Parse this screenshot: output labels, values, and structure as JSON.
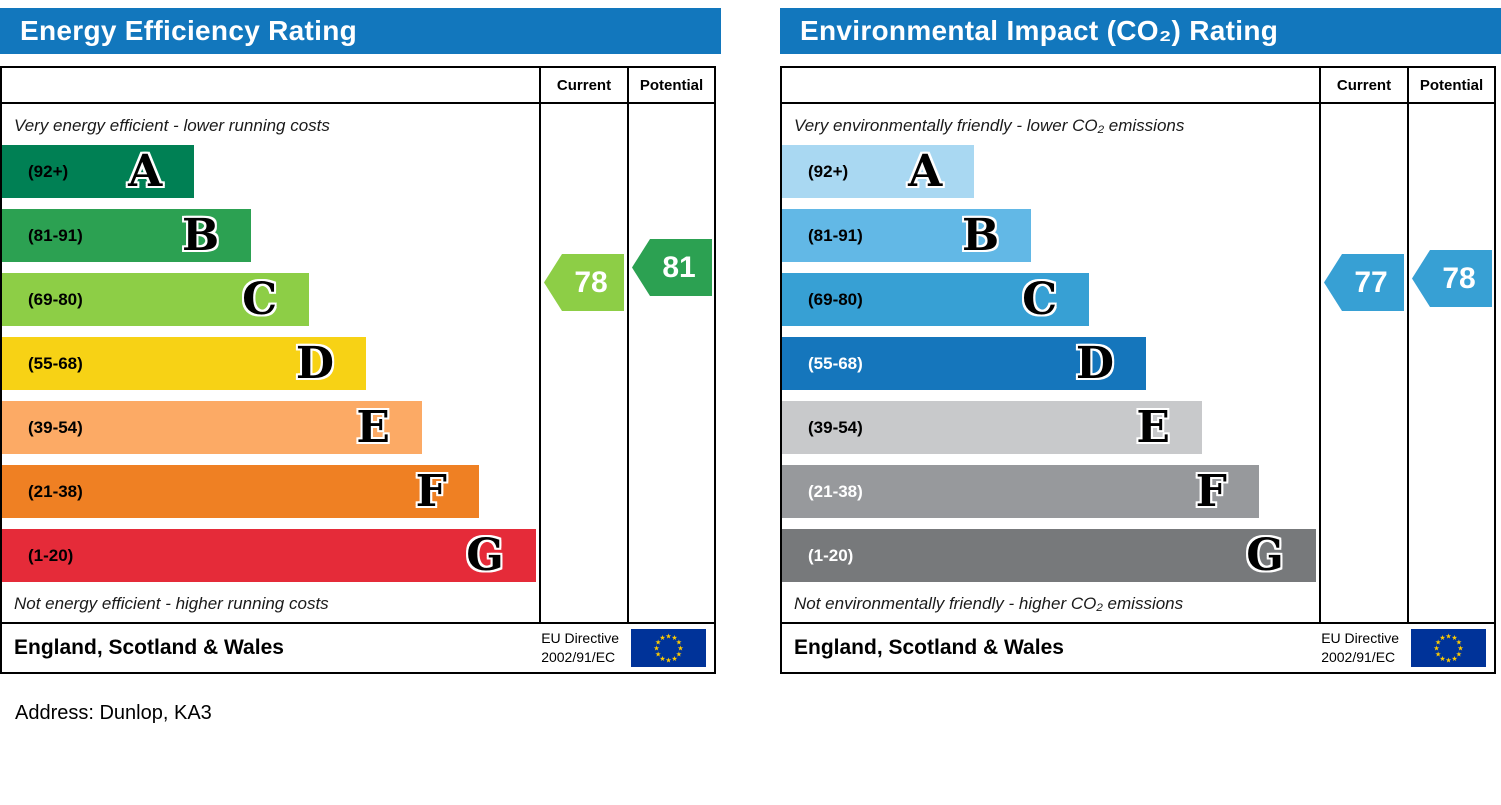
{
  "page": {
    "address": "Address: Dunlop, KA3"
  },
  "eu_flag": {
    "background": "#003399",
    "star_color": "#ffcc00"
  },
  "chart_data": [
    {
      "type": "bar",
      "title": "Energy Efficiency Rating",
      "header_color": "#1277bd",
      "columns": {
        "current": "Current",
        "potential": "Potential"
      },
      "top_note": "Very energy efficient - lower running costs",
      "bottom_note": "Not energy efficient - higher running costs",
      "bands": [
        {
          "letter": "A",
          "range": "(92+)",
          "min": 92,
          "max": 100,
          "color": "#008054",
          "text_color": "#000000",
          "width_pct": 35.8
        },
        {
          "letter": "B",
          "range": "(81-91)",
          "min": 81,
          "max": 91,
          "color": "#2ca152",
          "text_color": "#000000",
          "width_pct": 46.4
        },
        {
          "letter": "C",
          "range": "(69-80)",
          "min": 69,
          "max": 80,
          "color": "#8dce46",
          "text_color": "#000000",
          "width_pct": 57.2
        },
        {
          "letter": "D",
          "range": "(55-68)",
          "min": 55,
          "max": 68,
          "color": "#f7d215",
          "text_color": "#000000",
          "width_pct": 67.8
        },
        {
          "letter": "E",
          "range": "(39-54)",
          "min": 39,
          "max": 54,
          "color": "#fcaa65",
          "text_color": "#000000",
          "width_pct": 78.2
        },
        {
          "letter": "F",
          "range": "(21-38)",
          "min": 21,
          "max": 38,
          "color": "#ef8023",
          "text_color": "#000000",
          "width_pct": 88.8
        },
        {
          "letter": "G",
          "range": "(1-20)",
          "min": 1,
          "max": 20,
          "color": "#e52b39",
          "text_color": "#000000",
          "width_pct": 99.4
        }
      ],
      "current": {
        "value": 78,
        "band": "C",
        "color": "#8dce46"
      },
      "potential": {
        "value": 81,
        "band": "B",
        "color": "#2ca152"
      },
      "footer": {
        "region": "England, Scotland & Wales",
        "directive_line1": "EU Directive",
        "directive_line2": "2002/91/EC"
      }
    },
    {
      "type": "bar",
      "title": "Environmental Impact (CO₂) Rating",
      "header_color": "#1277bd",
      "columns": {
        "current": "Current",
        "potential": "Potential"
      },
      "top_note": "Very environmentally friendly - lower CO₂ emissions",
      "bottom_note": "Not environmentally friendly - higher CO₂ emissions",
      "bands": [
        {
          "letter": "A",
          "range": "(92+)",
          "min": 92,
          "max": 100,
          "color": "#a9d8f2",
          "text_color": "#000000",
          "width_pct": 35.8
        },
        {
          "letter": "B",
          "range": "(81-91)",
          "min": 81,
          "max": 91,
          "color": "#62b8e6",
          "text_color": "#000000",
          "width_pct": 46.4
        },
        {
          "letter": "C",
          "range": "(69-80)",
          "min": 69,
          "max": 80,
          "color": "#37a0d4",
          "text_color": "#000000",
          "width_pct": 57.2
        },
        {
          "letter": "D",
          "range": "(55-68)",
          "min": 55,
          "max": 68,
          "color": "#1576bc",
          "text_color": "#ffffff",
          "width_pct": 67.8
        },
        {
          "letter": "E",
          "range": "(39-54)",
          "min": 39,
          "max": 54,
          "color": "#c8c9cb",
          "text_color": "#000000",
          "width_pct": 78.2
        },
        {
          "letter": "F",
          "range": "(21-38)",
          "min": 21,
          "max": 38,
          "color": "#97999c",
          "text_color": "#ffffff",
          "width_pct": 88.8
        },
        {
          "letter": "G",
          "range": "(1-20)",
          "min": 1,
          "max": 20,
          "color": "#77797b",
          "text_color": "#ffffff",
          "width_pct": 99.4
        }
      ],
      "current": {
        "value": 77,
        "band": "C",
        "color": "#37a0d4"
      },
      "potential": {
        "value": 78,
        "band": "C",
        "color": "#37a0d4"
      },
      "footer": {
        "region": "England, Scotland & Wales",
        "directive_line1": "EU Directive",
        "directive_line2": "2002/91/EC"
      }
    }
  ]
}
